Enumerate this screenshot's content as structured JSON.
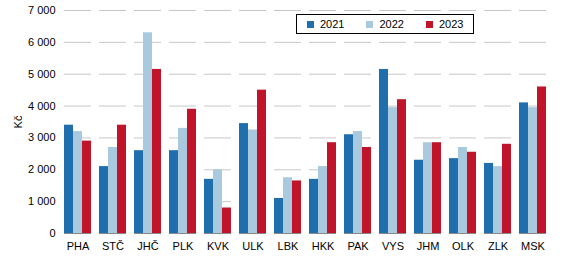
{
  "chart_data": {
    "type": "bar",
    "y_label": "Kč",
    "categories": [
      "PHA",
      "STČ",
      "JHČ",
      "PLK",
      "KVK",
      "ULK",
      "LBK",
      "HKK",
      "PAK",
      "VYS",
      "JHM",
      "OLK",
      "ZLK",
      "MSK"
    ],
    "series": [
      {
        "name": "2021",
        "color": "#1f6fae",
        "values": [
          3400,
          2100,
          2600,
          2600,
          1700,
          3450,
          1100,
          1700,
          3100,
          5150,
          2300,
          2350,
          2200,
          4100
        ]
      },
      {
        "name": "2022",
        "color": "#a8c9de",
        "values": [
          3200,
          2700,
          6300,
          3300,
          2000,
          3250,
          1750,
          2100,
          3200,
          3950,
          2850,
          2700,
          2100,
          3950
        ]
      },
      {
        "name": "2023",
        "color": "#c0142a",
        "values": [
          2900,
          3400,
          5150,
          3900,
          800,
          4500,
          1650,
          2850,
          2700,
          4200,
          2850,
          2550,
          2800,
          4600
        ]
      }
    ],
    "ylim": [
      0,
      7000
    ],
    "yticks": [
      0,
      {
        "value": 1000,
        "label": "1 000"
      },
      {
        "value": 2000,
        "label": "2 000"
      },
      {
        "value": 3000,
        "label": "3 000"
      },
      {
        "value": 4000,
        "label": "4 000"
      },
      {
        "value": 5000,
        "label": "5 000"
      },
      {
        "value": 6000,
        "label": "6 000"
      },
      {
        "value": 7000,
        "label": "7 000"
      }
    ],
    "grid": true,
    "legend": "top-right"
  }
}
